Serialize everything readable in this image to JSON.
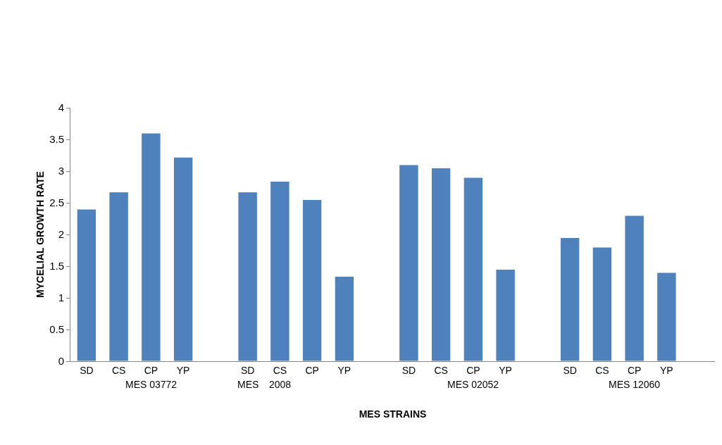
{
  "chart_data": {
    "type": "bar",
    "xlabel": "MES STRAINS",
    "ylabel": "MYCELIAL GROWTH RATE",
    "categories": [
      "SD",
      "CS",
      "CP",
      "YP",
      null,
      "SD",
      "CS",
      "CP",
      "YP",
      null,
      "SD",
      "CS",
      "CP",
      "YP",
      null,
      "SD",
      "CS",
      "CP",
      "YP",
      null
    ],
    "values": [
      2.4,
      2.67,
      3.6,
      3.22,
      null,
      2.67,
      2.84,
      2.55,
      1.34,
      null,
      3.1,
      3.05,
      2.9,
      1.45,
      null,
      1.95,
      1.8,
      2.3,
      1.4,
      null
    ],
    "color": "#4f81bd",
    "ylim": [
      0,
      4
    ],
    "yticks": [
      0,
      0.5,
      1,
      1.5,
      2,
      2.5,
      3,
      3.5,
      4
    ],
    "annotations": [
      "MES 03772",
      "MES",
      "2008",
      "MES 02052",
      "MES 12060"
    ]
  }
}
